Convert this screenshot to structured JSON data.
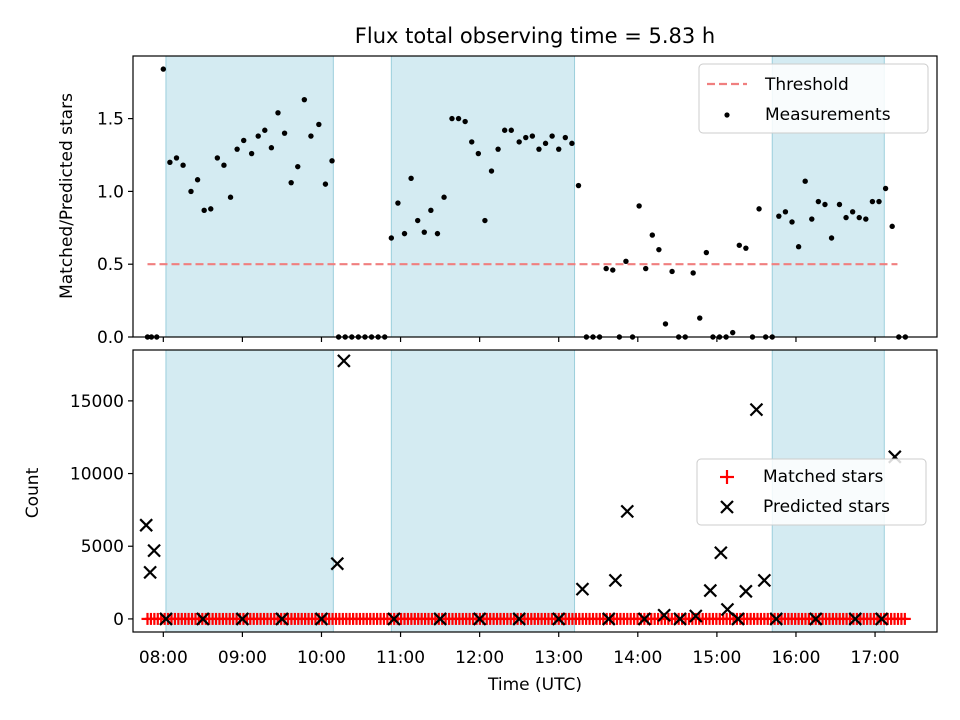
{
  "title": "Flux total observing time = 5.83 h",
  "chart_data": [
    {
      "type": "scatter",
      "panel": "top",
      "ylabel": "Matched/Predicted stars",
      "xlim": [
        "07:37",
        "17:47"
      ],
      "ylim": [
        0,
        1.93
      ],
      "y_ticks": [
        0.0,
        0.5,
        1.0,
        1.5
      ],
      "y_tick_labels": [
        "0.0",
        "0.5",
        "1.0",
        "1.5"
      ],
      "grid": false,
      "legend_position": "top-right",
      "legend": [
        {
          "label": "Threshold",
          "marker": "dashed-line",
          "color": "#f07f7f"
        },
        {
          "label": "Measurements",
          "marker": "dot",
          "color": "#000000"
        }
      ],
      "shaded_intervals": [
        [
          "08:02",
          "10:09"
        ],
        [
          "10:53",
          "13:12"
        ],
        [
          "15:42",
          "17:07"
        ]
      ],
      "threshold": {
        "value": 0.5,
        "x_range": [
          "07:48",
          "17:17"
        ]
      },
      "series": [
        {
          "name": "Measurements",
          "points": [
            [
              "07:48",
              0.0
            ],
            [
              "07:51",
              0.0
            ],
            [
              "07:55",
              0.0
            ],
            [
              "08:00",
              1.84
            ],
            [
              "08:05",
              1.2
            ],
            [
              "08:10",
              1.23
            ],
            [
              "08:15",
              1.18
            ],
            [
              "08:21",
              1.0
            ],
            [
              "08:26",
              1.08
            ],
            [
              "08:31",
              0.87
            ],
            [
              "08:36",
              0.88
            ],
            [
              "08:41",
              1.23
            ],
            [
              "08:46",
              1.18
            ],
            [
              "08:51",
              0.96
            ],
            [
              "08:56",
              1.29
            ],
            [
              "09:01",
              1.35
            ],
            [
              "09:07",
              1.26
            ],
            [
              "09:12",
              1.38
            ],
            [
              "09:17",
              1.42
            ],
            [
              "09:22",
              1.3
            ],
            [
              "09:27",
              1.54
            ],
            [
              "09:32",
              1.4
            ],
            [
              "09:37",
              1.06
            ],
            [
              "09:42",
              1.17
            ],
            [
              "09:47",
              1.63
            ],
            [
              "09:52",
              1.38
            ],
            [
              "09:58",
              1.46
            ],
            [
              "10:03",
              1.05
            ],
            [
              "10:08",
              1.21
            ],
            [
              "10:13",
              0.0
            ],
            [
              "10:18",
              0.0
            ],
            [
              "10:23",
              0.0
            ],
            [
              "10:28",
              0.0
            ],
            [
              "10:33",
              0.0
            ],
            [
              "10:38",
              0.0
            ],
            [
              "10:43",
              0.0
            ],
            [
              "10:48",
              0.0
            ],
            [
              "10:53",
              0.68
            ],
            [
              "10:58",
              0.92
            ],
            [
              "11:03",
              0.71
            ],
            [
              "11:08",
              1.09
            ],
            [
              "11:13",
              0.8
            ],
            [
              "11:18",
              0.72
            ],
            [
              "11:23",
              0.87
            ],
            [
              "11:28",
              0.71
            ],
            [
              "11:33",
              0.96
            ],
            [
              "11:39",
              1.5
            ],
            [
              "11:44",
              1.5
            ],
            [
              "11:49",
              1.48
            ],
            [
              "11:54",
              1.34
            ],
            [
              "11:59",
              1.26
            ],
            [
              "12:04",
              0.8
            ],
            [
              "12:09",
              1.14
            ],
            [
              "12:14",
              1.29
            ],
            [
              "12:19",
              1.42
            ],
            [
              "12:24",
              1.42
            ],
            [
              "12:30",
              1.34
            ],
            [
              "12:35",
              1.37
            ],
            [
              "12:40",
              1.38
            ],
            [
              "12:45",
              1.29
            ],
            [
              "12:50",
              1.33
            ],
            [
              "12:55",
              1.38
            ],
            [
              "13:00",
              1.29
            ],
            [
              "13:05",
              1.37
            ],
            [
              "13:10",
              1.33
            ],
            [
              "13:15",
              1.04
            ],
            [
              "13:21",
              0.0
            ],
            [
              "13:26",
              0.0
            ],
            [
              "13:31",
              0.0
            ],
            [
              "13:36",
              0.47
            ],
            [
              "13:41",
              0.46
            ],
            [
              "13:46",
              0.0
            ],
            [
              "13:51",
              0.52
            ],
            [
              "13:56",
              0.0
            ],
            [
              "14:01",
              0.9
            ],
            [
              "14:06",
              0.47
            ],
            [
              "14:11",
              0.7
            ],
            [
              "14:16",
              0.6
            ],
            [
              "14:21",
              0.09
            ],
            [
              "14:26",
              0.45
            ],
            [
              "14:31",
              0.0
            ],
            [
              "14:36",
              0.0
            ],
            [
              "14:42",
              0.44
            ],
            [
              "14:47",
              0.13
            ],
            [
              "14:52",
              0.58
            ],
            [
              "14:57",
              0.0
            ],
            [
              "15:02",
              0.0
            ],
            [
              "15:07",
              0.0
            ],
            [
              "15:12",
              0.03
            ],
            [
              "15:17",
              0.63
            ],
            [
              "15:22",
              0.61
            ],
            [
              "15:27",
              0.0
            ],
            [
              "15:32",
              0.88
            ],
            [
              "15:37",
              0.0
            ],
            [
              "15:42",
              0.0
            ],
            [
              "15:47",
              0.83
            ],
            [
              "15:52",
              0.86
            ],
            [
              "15:57",
              0.79
            ],
            [
              "16:02",
              0.62
            ],
            [
              "16:07",
              1.07
            ],
            [
              "16:12",
              0.81
            ],
            [
              "16:17",
              0.93
            ],
            [
              "16:22",
              0.91
            ],
            [
              "16:27",
              0.68
            ],
            [
              "16:33",
              0.91
            ],
            [
              "16:38",
              0.82
            ],
            [
              "16:43",
              0.86
            ],
            [
              "16:48",
              0.82
            ],
            [
              "16:53",
              0.81
            ],
            [
              "16:58",
              0.93
            ],
            [
              "17:03",
              0.93
            ],
            [
              "17:08",
              1.02
            ],
            [
              "17:13",
              0.76
            ],
            [
              "17:18",
              0.0
            ],
            [
              "17:23",
              0.0
            ]
          ]
        }
      ]
    },
    {
      "type": "scatter",
      "panel": "bottom",
      "xlabel": "Time (UTC)",
      "ylabel": "Count",
      "xlim": [
        "07:37",
        "17:47"
      ],
      "ylim": [
        -900,
        18500
      ],
      "y_ticks": [
        0,
        5000,
        10000,
        15000
      ],
      "y_tick_labels": [
        "0",
        "5000",
        "10000",
        "15000"
      ],
      "x_ticks": [
        "08:00",
        "09:00",
        "10:00",
        "11:00",
        "12:00",
        "13:00",
        "14:00",
        "15:00",
        "16:00",
        "17:00"
      ],
      "grid": false,
      "legend_position": "center-right",
      "legend": [
        {
          "label": "Matched stars",
          "marker": "plus",
          "color": "#ff0000"
        },
        {
          "label": "Predicted stars",
          "marker": "x",
          "color": "#000000"
        }
      ],
      "shaded_intervals": [
        [
          "08:02",
          "10:09"
        ],
        [
          "10:53",
          "13:12"
        ],
        [
          "15:42",
          "17:07"
        ]
      ],
      "matched_stars": {
        "start": "07:48",
        "end": "17:23",
        "interval_min": 2.6,
        "value": 0
      },
      "predicted_stars": [
        [
          "07:47",
          6450
        ],
        [
          "07:50",
          3200
        ],
        [
          "07:53",
          4700
        ],
        [
          "10:12",
          3800
        ],
        [
          "10:17",
          17750
        ],
        [
          "13:18",
          2050
        ],
        [
          "13:43",
          2650
        ],
        [
          "13:52",
          7400
        ],
        [
          "14:20",
          250
        ],
        [
          "14:44",
          200
        ],
        [
          "14:55",
          1950
        ],
        [
          "15:03",
          4550
        ],
        [
          "15:08",
          650
        ],
        [
          "15:22",
          1900
        ],
        [
          "15:30",
          14400
        ],
        [
          "15:36",
          2650
        ],
        [
          "17:15",
          11150
        ],
        [
          "08:02",
          0
        ],
        [
          "08:30",
          0
        ],
        [
          "09:00",
          0
        ],
        [
          "09:30",
          0
        ],
        [
          "10:00",
          0
        ],
        [
          "10:55",
          0
        ],
        [
          "11:30",
          0
        ],
        [
          "12:00",
          0
        ],
        [
          "12:30",
          0
        ],
        [
          "13:00",
          0
        ],
        [
          "13:38",
          0
        ],
        [
          "14:05",
          0
        ],
        [
          "14:32",
          0
        ],
        [
          "15:16",
          0
        ],
        [
          "15:45",
          0
        ],
        [
          "16:15",
          0
        ],
        [
          "16:45",
          0
        ],
        [
          "17:05",
          0
        ]
      ]
    }
  ]
}
